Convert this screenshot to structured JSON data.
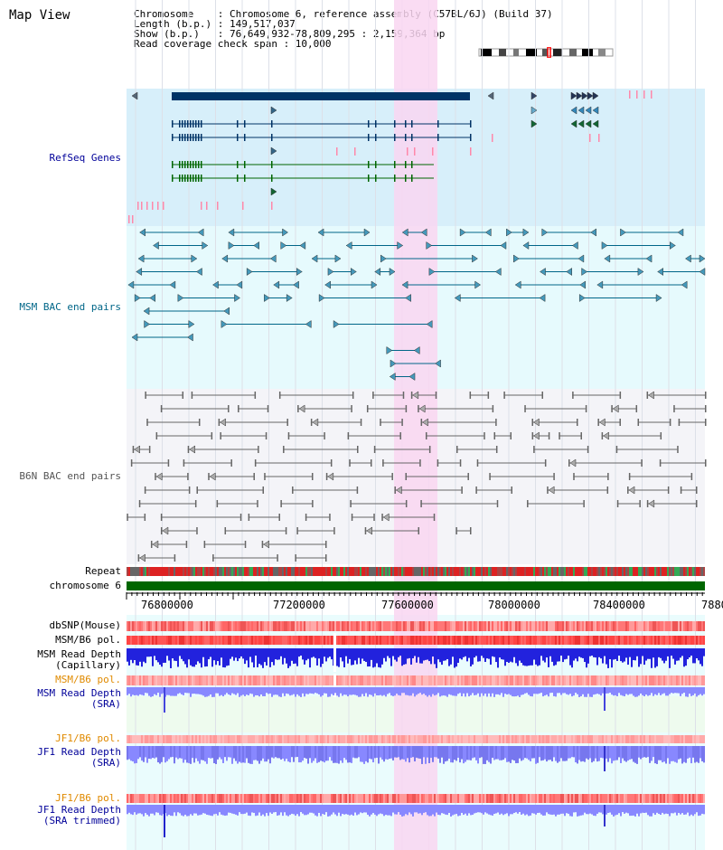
{
  "page": {
    "title": "Map View"
  },
  "header": {
    "lines": [
      "Chromosome    : Chromosome 6, reference assembly (C57BL/6J) (Build 37)",
      "Length (b.p.) : 149,517,037",
      "Show (b.p.)   : 76,649,932-78,809,295 : 2,159,364 bp",
      "Read coverage check span : 10,000"
    ]
  },
  "tracks": {
    "refseq": {
      "label": "RefSeq Genes",
      "color": "#000099"
    },
    "msm_bac": {
      "label": "MSM BAC end pairs",
      "color": "#006688"
    },
    "b6n_bac": {
      "label": "B6N BAC end pairs",
      "color": "#555555"
    },
    "repeat": {
      "label": "Repeat",
      "color": "#000000"
    },
    "chromosome": {
      "label": "chromosome 6",
      "color": "#000000"
    },
    "dbsnp": {
      "label": "dbSNP(Mouse)",
      "color": "#000000"
    },
    "msm_b6_pol_1": {
      "label": "MSM/B6 pol.",
      "color": "#000000"
    },
    "msm_read_depth_cap": {
      "label": "MSM Read Depth\n(Capillary)",
      "color": "#000000"
    },
    "msm_b6_pol_2": {
      "label": "MSM/B6 pol.",
      "color": "#e08a00"
    },
    "msm_read_depth_sra": {
      "label": "MSM Read Depth\n(SRA)",
      "color": "#000099"
    },
    "jf1_b6_pol_1": {
      "label": "JF1/B6 pol.",
      "color": "#e08a00"
    },
    "jf1_read_depth_sra": {
      "label": "JF1 Read Depth\n(SRA)",
      "color": "#000099"
    },
    "jf1_b6_pol_2": {
      "label": "JF1/B6 pol.",
      "color": "#e08a00"
    },
    "jf1_read_depth_trim": {
      "label": "JF1 Read Depth\n(SRA trimmed)",
      "color": "#000099"
    }
  },
  "axis": {
    "ticks": [
      "76800000",
      "77200000",
      "77600000",
      "78000000",
      "78400000",
      "7880"
    ]
  },
  "colors": {
    "highlight": "#f9d6f1",
    "refseq_bg": "#d7effa",
    "msm_bg": "#e6fafd",
    "b6n_bg": "#f4f4f8",
    "chromosome_bar": "#006600",
    "gene_dark": "#003366",
    "gene_green": "#006600",
    "msm_line": "#006688",
    "b6n_line": "#666666",
    "snp_red": "#ff6666",
    "depth_blue": "#2222dd",
    "depth_light_blue": "#8888ff"
  },
  "ideogram": {
    "highlight_color": "#ff0000"
  }
}
